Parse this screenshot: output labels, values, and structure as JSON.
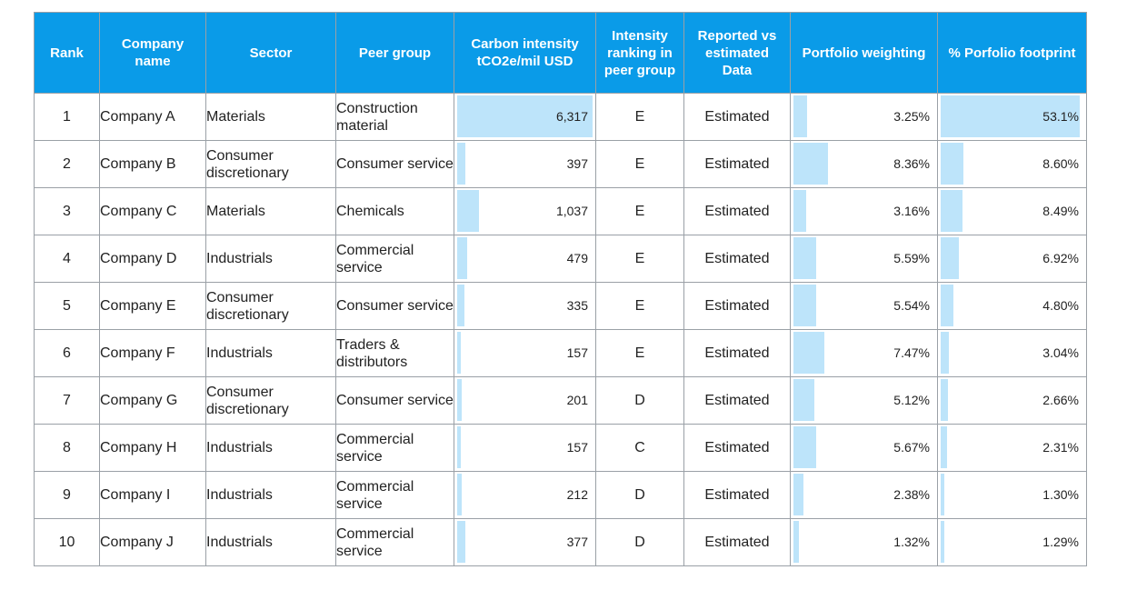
{
  "table": {
    "headers": {
      "rank": "Rank",
      "company": "Company name",
      "sector": "Sector",
      "peer_group": "Peer group",
      "carbon_intensity": "Carbon intensity tCO2e/mil USD",
      "intensity_ranking": "Intensity ranking in peer group",
      "reported_vs_estimated": "Reported vs estimated Data",
      "portfolio_weighting": "Portfolio weighting",
      "portfolio_footprint": "% Porfolio footprint"
    },
    "rows": [
      {
        "rank": "1",
        "company": "Company A",
        "sector": "Materials",
        "peer_group": "Construction material",
        "carbon_intensity": "6,317",
        "intensity_ranking": "E",
        "data_type": "Estimated",
        "weighting": "3.25%",
        "footprint": "53.1%"
      },
      {
        "rank": "2",
        "company": "Company B",
        "sector": "Consumer discretionary",
        "peer_group": "Consumer service",
        "carbon_intensity": "397",
        "intensity_ranking": "E",
        "data_type": "Estimated",
        "weighting": "8.36%",
        "footprint": "8.60%"
      },
      {
        "rank": "3",
        "company": "Company C",
        "sector": "Materials",
        "peer_group": "Chemicals",
        "carbon_intensity": "1,037",
        "intensity_ranking": "E",
        "data_type": "Estimated",
        "weighting": "3.16%",
        "footprint": "8.49%"
      },
      {
        "rank": "4",
        "company": "Company D",
        "sector": "Industrials",
        "peer_group": "Commercial service",
        "carbon_intensity": "479",
        "intensity_ranking": "E",
        "data_type": "Estimated",
        "weighting": "5.59%",
        "footprint": "6.92%"
      },
      {
        "rank": "5",
        "company": "Company E",
        "sector": "Consumer discretionary",
        "peer_group": "Consumer service",
        "carbon_intensity": "335",
        "intensity_ranking": "E",
        "data_type": "Estimated",
        "weighting": "5.54%",
        "footprint": "4.80%"
      },
      {
        "rank": "6",
        "company": "Company F",
        "sector": "Industrials",
        "peer_group": "Traders & distributors",
        "carbon_intensity": "157",
        "intensity_ranking": "E",
        "data_type": "Estimated",
        "weighting": "7.47%",
        "footprint": "3.04%"
      },
      {
        "rank": "7",
        "company": "Company G",
        "sector": "Consumer discretionary",
        "peer_group": "Consumer service",
        "carbon_intensity": "201",
        "intensity_ranking": "D",
        "data_type": "Estimated",
        "weighting": "5.12%",
        "footprint": "2.66%"
      },
      {
        "rank": "8",
        "company": "Company H",
        "sector": "Industrials",
        "peer_group": "Commercial service",
        "carbon_intensity": "157",
        "intensity_ranking": "C",
        "data_type": "Estimated",
        "weighting": "5.67%",
        "footprint": "2.31%"
      },
      {
        "rank": "9",
        "company": "Company I",
        "sector": "Industrials",
        "peer_group": "Commercial service",
        "carbon_intensity": "212",
        "intensity_ranking": "D",
        "data_type": "Estimated",
        "weighting": "2.38%",
        "footprint": "1.30%"
      },
      {
        "rank": "10",
        "company": "Company J",
        "sector": "Industrials",
        "peer_group": "Commercial service",
        "carbon_intensity": "377",
        "intensity_ranking": "D",
        "data_type": "Estimated",
        "weighting": "1.32%",
        "footprint": "1.29%"
      }
    ]
  },
  "colors": {
    "header_bg": "#0a9be8",
    "header_text": "#ffffff",
    "bar_fill": "#bde4fa",
    "border": "#9aa0a6"
  },
  "chart_data": {
    "type": "table",
    "columns": [
      "Rank",
      "Company name",
      "Sector",
      "Peer group",
      "Carbon intensity tCO2e/mil USD",
      "Intensity ranking in peer group",
      "Reported vs estimated Data",
      "Portfolio weighting",
      "% Porfolio footprint"
    ],
    "data_bars": {
      "carbon_intensity": [
        6317,
        397,
        1037,
        479,
        335,
        157,
        201,
        157,
        212,
        377
      ],
      "portfolio_weighting": [
        3.25,
        8.36,
        3.16,
        5.59,
        5.54,
        7.47,
        5.12,
        5.67,
        2.38,
        1.32
      ],
      "portfolio_footprint": [
        53.1,
        8.6,
        8.49,
        6.92,
        4.8,
        3.04,
        2.66,
        2.31,
        1.3,
        1.29
      ]
    }
  }
}
